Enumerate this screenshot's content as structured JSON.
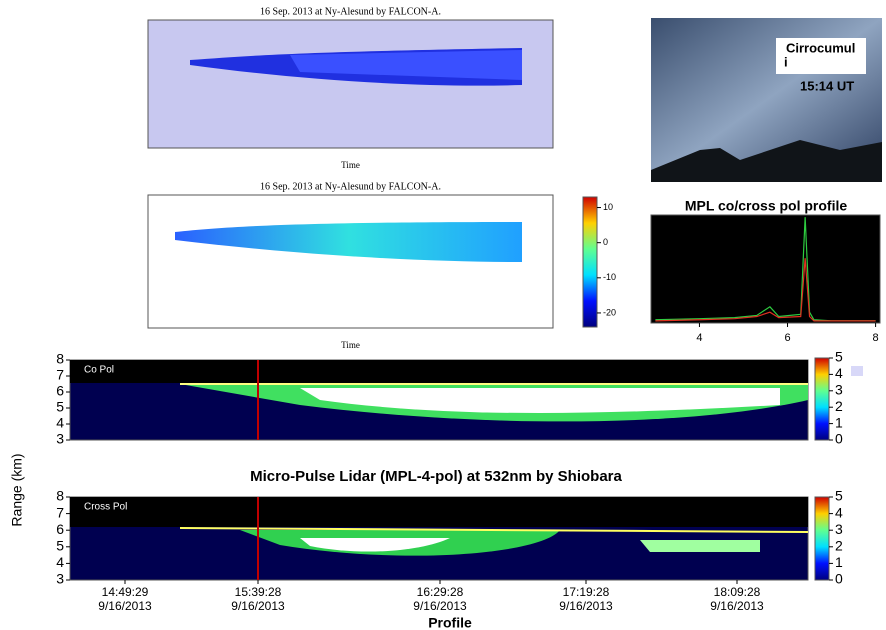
{
  "chart_data": [
    {
      "type": "heatmap",
      "title": "16 Sep. 2013 at Ny-Alesund by FALCON-A.",
      "x_label": "Time"
    },
    {
      "type": "heatmap",
      "title": "16 Sep. 2013 at Ny-Alesund by FALCON-A.",
      "x_label": "Time",
      "colorbar": {
        "lim": [
          -24,
          13
        ],
        "ticks": [
          10,
          0,
          -10,
          -20
        ]
      }
    },
    {
      "type": "line",
      "title": "MPL co/cross pol profile",
      "x": [
        3.0,
        4.0,
        4.8,
        5.3,
        5.6,
        5.8,
        6.3,
        6.4,
        6.5,
        6.6,
        7.0,
        8.0
      ],
      "series": [
        {
          "color": "#2ecc40",
          "values": [
            0.03,
            0.04,
            0.05,
            0.07,
            0.15,
            0.06,
            0.08,
            0.98,
            0.1,
            0.03,
            0.02,
            0.02
          ]
        },
        {
          "color": "#e03020",
          "values": [
            0.02,
            0.03,
            0.04,
            0.06,
            0.1,
            0.05,
            0.06,
            0.6,
            0.06,
            0.02,
            0.02,
            0.02
          ]
        }
      ],
      "xlim": [
        2.9,
        8.1
      ],
      "ylim": [
        0,
        1
      ],
      "xticks": [
        4,
        6,
        8
      ]
    },
    {
      "type": "heatmap",
      "label": "Co Pol",
      "ylim": [
        3,
        8
      ],
      "yticks": [
        3,
        4,
        5,
        6,
        7,
        8
      ],
      "colorbar": {
        "lim": [
          0,
          5
        ],
        "ticks": [
          0,
          1,
          2,
          3,
          4,
          5
        ]
      }
    },
    {
      "type": "heatmap",
      "label": "Cross Pol",
      "ylim": [
        3,
        8
      ],
      "yticks": [
        3,
        4,
        5,
        6,
        7,
        8
      ],
      "colorbar": {
        "lim": [
          0,
          5
        ],
        "ticks": [
          0,
          1,
          2,
          3,
          4,
          5
        ]
      },
      "x": [
        "14:49:29",
        "15:39:28",
        "16:29:28",
        "17:19:28",
        "18:09:28"
      ],
      "x_dates": [
        "9/16/2013",
        "9/16/2013",
        "9/16/2013",
        "9/16/2013",
        "9/16/2013"
      ],
      "x_label": "Profile"
    }
  ],
  "figure_title": "Micro-Pulse Lidar (MPL-4-pol) at 532nm by Shiobara",
  "y_label": "Range (km)",
  "photo": {
    "label": [
      "Cirrocumul",
      "i"
    ],
    "time": "15:14 UT"
  }
}
